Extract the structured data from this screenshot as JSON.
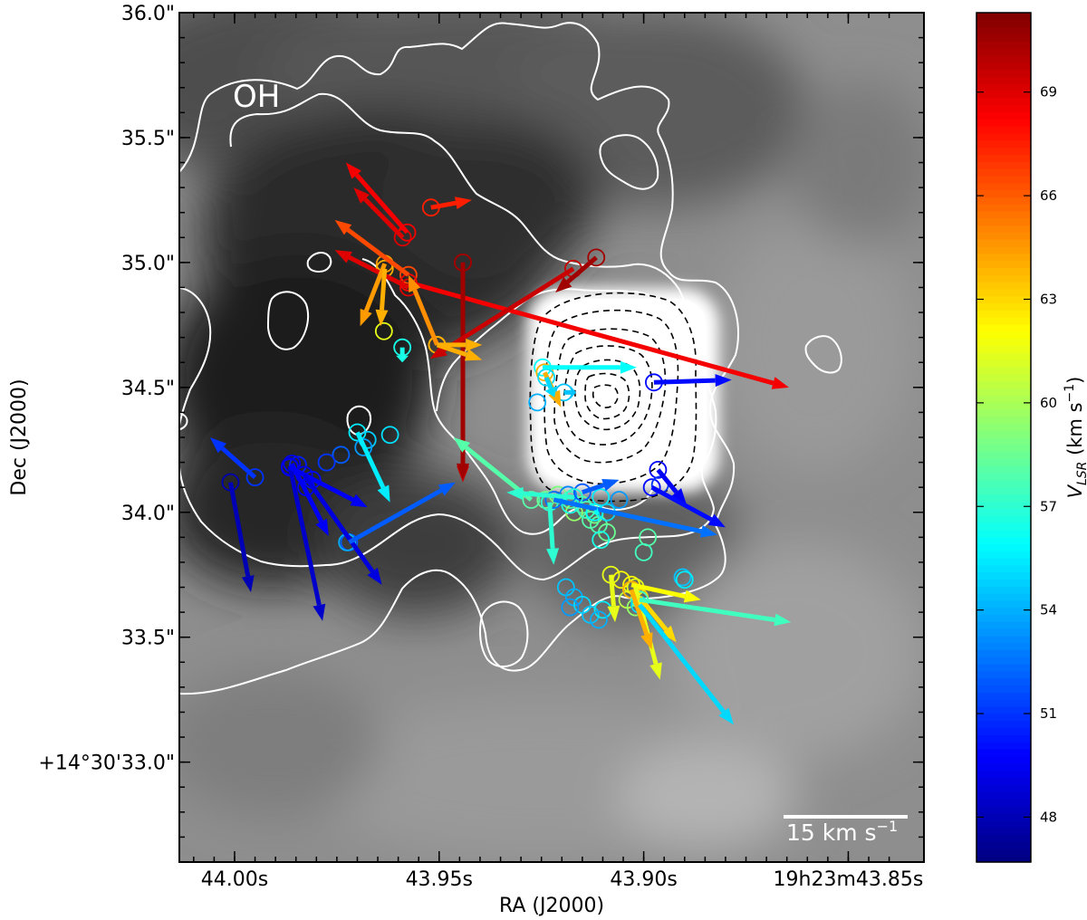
{
  "chart_data": {
    "type": "scatter",
    "xlabel": "RA (J2000)",
    "ylabel": "Dec (J2000)",
    "x_ticks": [
      {
        "ra_s": 44.0,
        "label": "44.00s"
      },
      {
        "ra_s": 43.95,
        "label": "43.95s"
      },
      {
        "ra_s": 43.9,
        "label": "43.90s"
      },
      {
        "ra_s": 43.85,
        "label": "19h23m43.85s"
      }
    ],
    "y_ticks": [
      {
        "dec_arcsec": 36.0,
        "label": "36.0\""
      },
      {
        "dec_arcsec": 35.5,
        "label": "35.5\""
      },
      {
        "dec_arcsec": 35.0,
        "label": "35.0\""
      },
      {
        "dec_arcsec": 34.5,
        "label": "34.5\""
      },
      {
        "dec_arcsec": 34.0,
        "label": "34.0\""
      },
      {
        "dec_arcsec": 33.5,
        "label": "33.5\""
      },
      {
        "dec_arcsec": 33.0,
        "label": "+14°30'33.0\""
      }
    ],
    "xlim_ra_s": [
      44.0135,
      43.8315
    ],
    "ylim_dec_arcsec": [
      32.6,
      36.0
    ],
    "annotation": "OH",
    "scale_bar": {
      "label": "15 km s",
      "superscript": "−1",
      "kms": 15
    },
    "colorbar": {
      "label": "V",
      "label_sub": "LSR",
      "label_units": " (km s",
      "label_sup": "−1",
      "label_close": ")",
      "vmin": 46.7,
      "vmax": 71.3,
      "ticks": [
        "48",
        "51",
        "54",
        "57",
        "60",
        "63",
        "66",
        "69"
      ]
    },
    "masers": [
      {
        "ra": 43.9589,
        "dec": 35.1,
        "v": 69.0,
        "dra": 0.012,
        "ddec": 0.2
      },
      {
        "ra": 43.9578,
        "dec": 35.12,
        "v": 68.5,
        "dra": 0.015,
        "ddec": 0.28
      },
      {
        "ra": 43.952,
        "dec": 35.22,
        "v": 67.5,
        "dra": -0.01,
        "ddec": 0.03
      },
      {
        "ra": 43.9575,
        "dec": 34.95,
        "v": 66.5,
        "dra": 0.018,
        "ddec": 0.22
      },
      {
        "ra": 43.9575,
        "dec": 34.92,
        "v": 68.5,
        "dra": -0.093,
        "ddec": -0.42
      },
      {
        "ra": 43.9575,
        "dec": 34.9,
        "v": 69.0,
        "dra": 0.018,
        "ddec": 0.15
      },
      {
        "ra": 43.9442,
        "dec": 35.0,
        "v": 69.5,
        "dra": 0.0,
        "ddec": -0.88
      },
      {
        "ra": 43.9442,
        "dec": 35.0,
        "v": 70.5,
        "dra": 0.0,
        "ddec": -0.87
      },
      {
        "ra": 43.9172,
        "dec": 34.975,
        "v": 69.5,
        "dra": 0.035,
        "ddec": -0.36
      },
      {
        "ra": 43.9116,
        "dec": 35.02,
        "v": 70.5,
        "dra": 0.01,
        "ddec": -0.14
      },
      {
        "ra": 43.9633,
        "dec": 34.995,
        "v": 64.5,
        "dra": 0.006,
        "ddec": -0.25
      },
      {
        "ra": 43.9633,
        "dec": 34.975,
        "v": 64.0,
        "dra": 0.001,
        "ddec": -0.23
      },
      {
        "ra": 43.9505,
        "dec": 34.67,
        "v": 64.8,
        "dra": 0.007,
        "ddec": 0.28
      },
      {
        "ra": 43.9505,
        "dec": 34.67,
        "v": 64.0,
        "dra": -0.011,
        "ddec": 0.0
      },
      {
        "ra": 43.9505,
        "dec": 34.67,
        "v": 64.0,
        "dra": -0.011,
        "ddec": -0.06
      },
      {
        "ra": 43.959,
        "dec": 34.66,
        "v": 56.5,
        "dra": 0.0,
        "ddec": -0.06
      },
      {
        "ra": 43.9635,
        "dec": 34.725,
        "v": 61.5,
        "dra": 0.0,
        "ddec": 0.0
      },
      {
        "ra": 43.9247,
        "dec": 34.58,
        "v": 56.0,
        "dra": -0.023,
        "ddec": 0.0
      },
      {
        "ra": 43.9242,
        "dec": 34.56,
        "v": 64.0,
        "dra": -0.004,
        "ddec": -0.14
      },
      {
        "ra": 43.9238,
        "dec": 34.54,
        "v": 55.0,
        "dra": -0.002,
        "ddec": -0.08
      },
      {
        "ra": 43.9195,
        "dec": 34.48,
        "v": 54.5,
        "dra": -0.003,
        "ddec": 0.0
      },
      {
        "ra": 43.926,
        "dec": 34.44,
        "v": 54.0,
        "dra": 0.0,
        "ddec": 0.0
      },
      {
        "ra": 43.8975,
        "dec": 34.52,
        "v": 50.0,
        "dra": -0.019,
        "ddec": 0.01
      },
      {
        "ra": 43.97,
        "dec": 34.32,
        "v": 55.5,
        "dra": -0.008,
        "ddec": -0.28
      },
      {
        "ra": 43.9675,
        "dec": 34.29,
        "v": 54.8,
        "dra": 0.0,
        "ddec": 0.0
      },
      {
        "ra": 43.962,
        "dec": 34.31,
        "v": 55.2,
        "dra": 0.0,
        "ddec": 0.0
      },
      {
        "ra": 43.9685,
        "dec": 34.26,
        "v": 53.5,
        "dra": 0.0,
        "ddec": 0.0
      },
      {
        "ra": 43.974,
        "dec": 34.23,
        "v": 52.0,
        "dra": 0.0,
        "ddec": 0.0
      },
      {
        "ra": 43.9775,
        "dec": 34.2,
        "v": 51.0,
        "dra": 0.0,
        "ddec": 0.0
      },
      {
        "ra": 43.9845,
        "dec": 34.19,
        "v": 50.5,
        "dra": 0.0,
        "ddec": 0.0
      },
      {
        "ra": 43.986,
        "dec": 34.195,
        "v": 49.5,
        "dra": -0.009,
        "ddec": -0.29
      },
      {
        "ra": 43.9865,
        "dec": 34.185,
        "v": 48.5,
        "dra": -0.008,
        "ddec": -0.62
      },
      {
        "ra": 43.9865,
        "dec": 34.18,
        "v": 49.5,
        "dra": -0.019,
        "ddec": -0.16
      },
      {
        "ra": 43.983,
        "dec": 34.15,
        "v": 49.0,
        "dra": -0.019,
        "ddec": -0.44
      },
      {
        "ra": 43.981,
        "dec": 34.13,
        "v": 50.0,
        "dra": 0.0,
        "ddec": 0.0
      },
      {
        "ra": 43.9825,
        "dec": 34.1,
        "v": 49.5,
        "dra": 0.0,
        "ddec": 0.0
      },
      {
        "ra": 43.995,
        "dec": 34.14,
        "v": 51.0,
        "dra": 0.011,
        "ddec": 0.16
      },
      {
        "ra": 44.001,
        "dec": 34.12,
        "v": 48.0,
        "dra": -0.005,
        "ddec": -0.44
      },
      {
        "ra": 43.972,
        "dec": 33.88,
        "v": 52.0,
        "dra": -0.026,
        "ddec": 0.24
      },
      {
        "ra": 43.9725,
        "dec": 33.88,
        "v": 54.0,
        "dra": 0.0,
        "ddec": 0.0
      },
      {
        "ra": 43.9275,
        "dec": 34.05,
        "v": 58.0,
        "dra": 0.019,
        "ddec": 0.25
      },
      {
        "ra": 43.924,
        "dec": 34.05,
        "v": 58.5,
        "dra": 0.0,
        "ddec": 0.0
      },
      {
        "ra": 43.921,
        "dec": 34.07,
        "v": 59.0,
        "dra": 0.0,
        "ddec": 0.0
      },
      {
        "ra": 43.918,
        "dec": 34.05,
        "v": 57.5,
        "dra": 0.0,
        "ddec": 0.0
      },
      {
        "ra": 43.915,
        "dec": 34.03,
        "v": 58.0,
        "dra": 0.0,
        "ddec": 0.0
      },
      {
        "ra": 43.912,
        "dec": 33.99,
        "v": 59.0,
        "dra": 0.0,
        "ddec": 0.0
      },
      {
        "ra": 43.911,
        "dec": 33.95,
        "v": 58.0,
        "dra": 0.0,
        "ddec": 0.0
      },
      {
        "ra": 43.909,
        "dec": 33.92,
        "v": 58.5,
        "dra": 0.0,
        "ddec": 0.0
      },
      {
        "ra": 43.913,
        "dec": 33.97,
        "v": 58.0,
        "dra": 0.0,
        "ddec": 0.0
      },
      {
        "ra": 43.917,
        "dec": 34.0,
        "v": 59.5,
        "dra": 0.0,
        "ddec": 0.0
      },
      {
        "ra": 43.923,
        "dec": 34.04,
        "v": 57.0,
        "dra": -0.001,
        "ddec": -0.25
      },
      {
        "ra": 43.918,
        "dec": 34.03,
        "v": 56.5,
        "dra": 0.0,
        "ddec": 0.0
      },
      {
        "ra": 43.914,
        "dec": 34.01,
        "v": 57.5,
        "dra": 0.0,
        "ddec": 0.0
      },
      {
        "ra": 43.9105,
        "dec": 34.06,
        "v": 55.5,
        "dra": 0.0,
        "ddec": 0.0
      },
      {
        "ra": 43.9185,
        "dec": 34.07,
        "v": 53.0,
        "dra": 0.0,
        "ddec": 0.0
      },
      {
        "ra": 43.906,
        "dec": 34.05,
        "v": 53.5,
        "dra": 0.0,
        "ddec": 0.0
      },
      {
        "ra": 43.915,
        "dec": 34.08,
        "v": 52.0,
        "dra": -0.009,
        "ddec": 0.05
      },
      {
        "ra": 43.909,
        "dec": 34.0,
        "v": 55.0,
        "dra": 0.0,
        "ddec": 0.0
      },
      {
        "ra": 43.917,
        "dec": 34.06,
        "v": 57.0,
        "dra": 0.0165,
        "ddec": 0.02
      },
      {
        "ra": 43.922,
        "dec": 34.05,
        "v": 52.5,
        "dra": -0.04,
        "ddec": -0.14
      },
      {
        "ra": 43.912,
        "dec": 34.0,
        "v": 56.0,
        "dra": -0.001,
        "ddec": 0.0
      },
      {
        "ra": 43.9105,
        "dec": 33.89,
        "v": 56.5,
        "dra": 0.0,
        "ddec": 0.0
      },
      {
        "ra": 43.899,
        "dec": 33.9,
        "v": 58.0,
        "dra": 0.0,
        "ddec": 0.0
      },
      {
        "ra": 43.9,
        "dec": 33.84,
        "v": 57.5,
        "dra": 0.0,
        "ddec": 0.0
      },
      {
        "ra": 43.8965,
        "dec": 34.17,
        "v": 49.5,
        "dra": -0.007,
        "ddec": -0.14
      },
      {
        "ra": 43.898,
        "dec": 34.1,
        "v": 50.0,
        "dra": -0.018,
        "ddec": -0.16
      },
      {
        "ra": 43.896,
        "dec": 34.11,
        "v": 51.0,
        "dra": 0.0,
        "ddec": 0.0
      },
      {
        "ra": 43.919,
        "dec": 33.7,
        "v": 54.5,
        "dra": 0.0,
        "ddec": 0.0
      },
      {
        "ra": 43.917,
        "dec": 33.66,
        "v": 54.0,
        "dra": 0.0,
        "ddec": 0.0
      },
      {
        "ra": 43.915,
        "dec": 33.63,
        "v": 55.0,
        "dra": 0.0,
        "ddec": 0.0
      },
      {
        "ra": 43.913,
        "dec": 33.59,
        "v": 54.5,
        "dra": 0.0,
        "ddec": 0.0
      },
      {
        "ra": 43.91,
        "dec": 33.61,
        "v": 55.5,
        "dra": 0.0,
        "ddec": 0.0
      },
      {
        "ra": 43.911,
        "dec": 33.57,
        "v": 54.0,
        "dra": 0.0,
        "ddec": 0.0
      },
      {
        "ra": 43.918,
        "dec": 33.62,
        "v": 53.5,
        "dra": 0.0,
        "ddec": 0.0
      },
      {
        "ra": 43.908,
        "dec": 33.75,
        "v": 61.5,
        "dra": -0.001,
        "ddec": -0.19
      },
      {
        "ra": 43.9055,
        "dec": 33.73,
        "v": 62.0,
        "dra": 0.0,
        "ddec": 0.0
      },
      {
        "ra": 43.903,
        "dec": 33.69,
        "v": 61.5,
        "dra": 0.0,
        "ddec": 0.0
      },
      {
        "ra": 43.904,
        "dec": 33.65,
        "v": 60.5,
        "dra": 0.0,
        "ddec": 0.0
      },
      {
        "ra": 43.902,
        "dec": 33.62,
        "v": 59.5,
        "dra": 0.0,
        "ddec": 0.0
      },
      {
        "ra": 43.903,
        "dec": 33.71,
        "v": 62.0,
        "dra": -0.017,
        "ddec": -0.06
      },
      {
        "ra": 43.902,
        "dec": 33.7,
        "v": 61.5,
        "dra": -0.006,
        "ddec": -0.37
      },
      {
        "ra": 43.903,
        "dec": 33.69,
        "v": 64.0,
        "dra": -0.005,
        "ddec": -0.24
      },
      {
        "ra": 43.901,
        "dec": 33.66,
        "v": 63.0,
        "dra": -0.009,
        "ddec": -0.18
      },
      {
        "ra": 43.901,
        "dec": 33.65,
        "v": 57.5,
        "dra": -0.037,
        "ddec": -0.09
      },
      {
        "ra": 43.901,
        "dec": 33.63,
        "v": 55.0,
        "dra": -0.023,
        "ddec": -0.48
      },
      {
        "ra": 43.8905,
        "dec": 33.74,
        "v": 54.5,
        "dra": 0.0,
        "ddec": 0.0
      },
      {
        "ra": 43.89,
        "dec": 33.73,
        "v": 55.5,
        "dra": 0.0,
        "ddec": 0.0
      }
    ]
  }
}
